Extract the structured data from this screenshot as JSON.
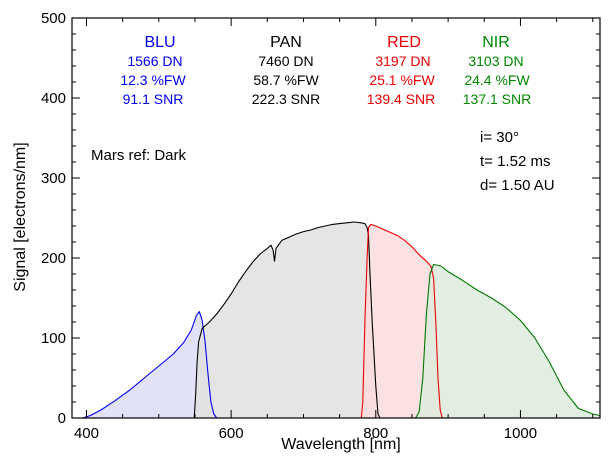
{
  "chart_data": {
    "type": "area",
    "xlabel": "Wavelength [nm]",
    "ylabel": "Signal [electrons/nm]",
    "xlim": [
      380,
      1110
    ],
    "ylim": [
      0,
      500
    ],
    "x_ticks": [
      400,
      600,
      800,
      1000
    ],
    "x_tick_labels": [
      "400",
      "600",
      "800",
      "1000"
    ],
    "y_ticks": [
      0,
      100,
      200,
      300,
      400,
      500
    ],
    "y_tick_labels": [
      "0",
      "100",
      "200",
      "300",
      "400",
      "500"
    ],
    "grid": false,
    "series": [
      {
        "name": "BLU",
        "color": "#0000ee",
        "fill": "#dcdcf6",
        "points": [
          [
            380,
            0
          ],
          [
            395,
            0
          ],
          [
            405,
            3
          ],
          [
            420,
            10
          ],
          [
            440,
            22
          ],
          [
            460,
            35
          ],
          [
            480,
            50
          ],
          [
            500,
            65
          ],
          [
            520,
            80
          ],
          [
            535,
            95
          ],
          [
            545,
            110
          ],
          [
            552,
            128
          ],
          [
            556,
            133
          ],
          [
            560,
            122
          ],
          [
            564,
            95
          ],
          [
            568,
            55
          ],
          [
            572,
            20
          ],
          [
            576,
            5
          ],
          [
            580,
            0
          ]
        ]
      },
      {
        "name": "PAN",
        "color": "#000000",
        "fill": "#e0e0e0",
        "points": [
          [
            549,
            0
          ],
          [
            551,
            30
          ],
          [
            553,
            70
          ],
          [
            555,
            95
          ],
          [
            560,
            112
          ],
          [
            570,
            120
          ],
          [
            580,
            130
          ],
          [
            590,
            142
          ],
          [
            600,
            155
          ],
          [
            610,
            170
          ],
          [
            620,
            183
          ],
          [
            630,
            195
          ],
          [
            640,
            205
          ],
          [
            650,
            212
          ],
          [
            655,
            216
          ],
          [
            658,
            210
          ],
          [
            660,
            196
          ],
          [
            662,
            212
          ],
          [
            670,
            222
          ],
          [
            680,
            226
          ],
          [
            690,
            230
          ],
          [
            700,
            233
          ],
          [
            710,
            235
          ],
          [
            720,
            238
          ],
          [
            730,
            240
          ],
          [
            740,
            242
          ],
          [
            750,
            243
          ],
          [
            760,
            244
          ],
          [
            770,
            245
          ],
          [
            780,
            244
          ],
          [
            785,
            243
          ],
          [
            788,
            238
          ],
          [
            790,
            228
          ],
          [
            792,
            180
          ],
          [
            795,
            120
          ],
          [
            800,
            40
          ],
          [
            803,
            5
          ],
          [
            806,
            0
          ]
        ]
      },
      {
        "name": "RED",
        "color": "#ee0000",
        "fill": "#fadcdc",
        "points": [
          [
            780,
            0
          ],
          [
            782,
            20
          ],
          [
            785,
            120
          ],
          [
            788,
            200
          ],
          [
            790,
            238
          ],
          [
            793,
            242
          ],
          [
            800,
            240
          ],
          [
            810,
            236
          ],
          [
            820,
            232
          ],
          [
            830,
            228
          ],
          [
            840,
            222
          ],
          [
            850,
            214
          ],
          [
            860,
            204
          ],
          [
            870,
            196
          ],
          [
            876,
            190
          ],
          [
            880,
            175
          ],
          [
            883,
            120
          ],
          [
            886,
            50
          ],
          [
            889,
            10
          ],
          [
            892,
            0
          ]
        ]
      },
      {
        "name": "NIR",
        "color": "#007700",
        "fill": "#dcebdc",
        "points": [
          [
            855,
            0
          ],
          [
            860,
            8
          ],
          [
            865,
            50
          ],
          [
            870,
            130
          ],
          [
            875,
            180
          ],
          [
            880,
            192
          ],
          [
            890,
            190
          ],
          [
            900,
            183
          ],
          [
            920,
            172
          ],
          [
            940,
            160
          ],
          [
            960,
            150
          ],
          [
            980,
            138
          ],
          [
            1000,
            122
          ],
          [
            1020,
            100
          ],
          [
            1040,
            70
          ],
          [
            1060,
            35
          ],
          [
            1080,
            12
          ],
          [
            1100,
            5
          ],
          [
            1110,
            3
          ]
        ]
      }
    ],
    "band_labels": [
      {
        "band": "BLU",
        "dn": "1566 DN",
        "fw": "12.3 %FW",
        "snr": "91.1 SNR",
        "color": "#0000ee"
      },
      {
        "band": "PAN",
        "dn": "7460 DN",
        "fw": "58.7 %FW",
        "snr": "222.3 SNR",
        "color": "#000000"
      },
      {
        "band": "RED",
        "dn": "3197 DN",
        "fw": "25.1 %FW",
        "snr": "139.4 SNR",
        "color": "#ee0000"
      },
      {
        "band": "NIR",
        "dn": "3103 DN",
        "fw": "24.4 %FW",
        "snr": "137.1 SNR",
        "color": "#008800"
      }
    ],
    "annotations": {
      "mars_ref": "Mars ref: Dark",
      "incidence": "i= 30°",
      "exposure": "t= 1.52 ms",
      "distance": "d= 1.50 AU"
    }
  }
}
